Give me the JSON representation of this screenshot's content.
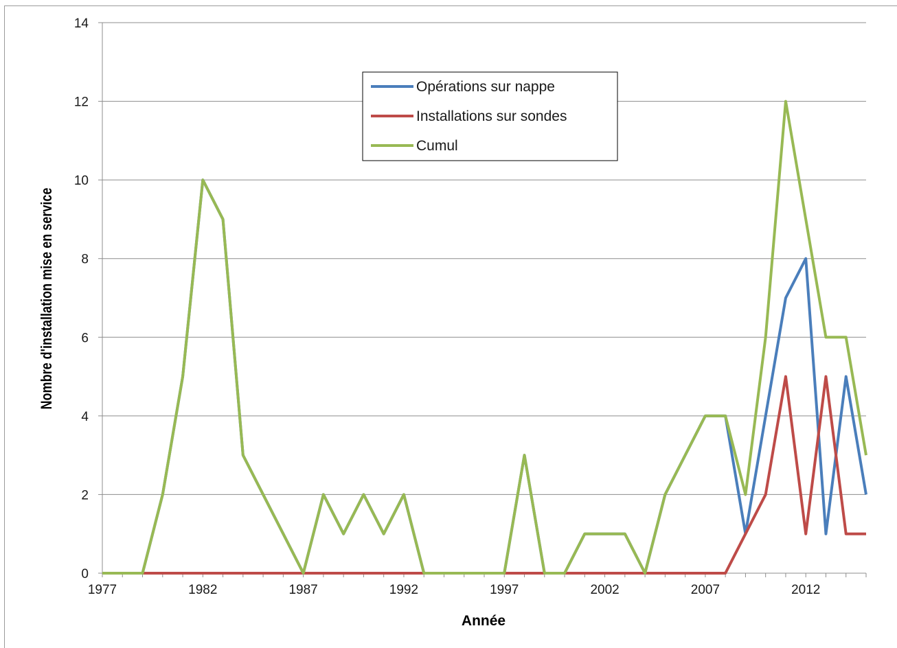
{
  "chart_data": {
    "type": "line",
    "title": "",
    "xlabel": "Année",
    "ylabel": "Nombre d'installation mise en service",
    "x": [
      1977,
      1978,
      1979,
      1980,
      1981,
      1982,
      1983,
      1984,
      1985,
      1986,
      1987,
      1988,
      1989,
      1990,
      1991,
      1992,
      1993,
      1994,
      1995,
      1996,
      1997,
      1998,
      1999,
      2000,
      2001,
      2002,
      2003,
      2004,
      2005,
      2006,
      2007,
      2008,
      2009,
      2010,
      2011,
      2012,
      2013,
      2014,
      2015
    ],
    "x_ticks": [
      1977,
      1982,
      1987,
      1992,
      1997,
      2002,
      2007,
      2012
    ],
    "xlim": [
      1977,
      2015
    ],
    "ylim": [
      0,
      14
    ],
    "y_ticks": [
      0,
      2,
      4,
      6,
      8,
      10,
      12,
      14
    ],
    "grid": true,
    "legend_position": "top-center",
    "series": [
      {
        "name": "Opérations sur nappe",
        "color": "#4a7ebb",
        "values": [
          0,
          0,
          0,
          2,
          5,
          10,
          9,
          3,
          2,
          1,
          0,
          2,
          1,
          2,
          1,
          2,
          0,
          0,
          0,
          0,
          0,
          3,
          0,
          0,
          1,
          1,
          1,
          0,
          2,
          3,
          4,
          4,
          1,
          4,
          7,
          8,
          1,
          5,
          2
        ]
      },
      {
        "name": "Installations sur sondes",
        "color": "#be4b48",
        "values": [
          0,
          0,
          0,
          0,
          0,
          0,
          0,
          0,
          0,
          0,
          0,
          0,
          0,
          0,
          0,
          0,
          0,
          0,
          0,
          0,
          0,
          0,
          0,
          0,
          0,
          0,
          0,
          0,
          0,
          0,
          0,
          0,
          1,
          2,
          5,
          1,
          5,
          1,
          1
        ]
      },
      {
        "name": "Cumul",
        "color": "#98b954",
        "values": [
          0,
          0,
          0,
          2,
          5,
          10,
          9,
          3,
          2,
          1,
          0,
          2,
          1,
          2,
          1,
          2,
          0,
          0,
          0,
          0,
          0,
          3,
          0,
          0,
          1,
          1,
          1,
          0,
          2,
          3,
          4,
          4,
          2,
          6,
          12,
          9,
          6,
          6,
          3
        ]
      }
    ]
  }
}
